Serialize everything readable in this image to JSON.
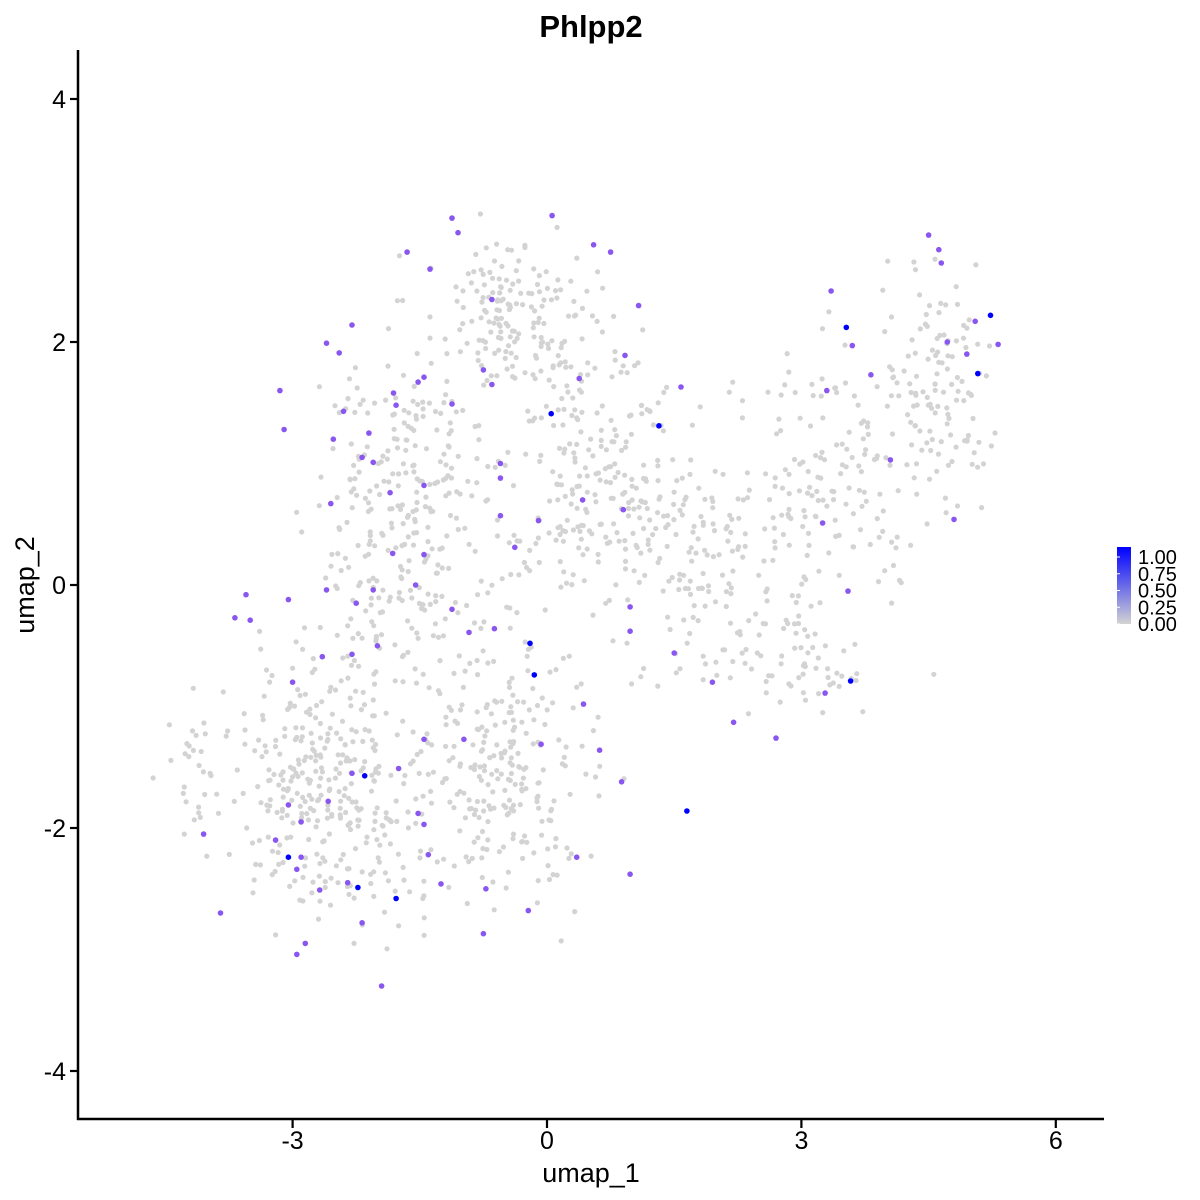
{
  "chart_data": {
    "type": "scatter",
    "title": "Phlpp2",
    "xlabel": "umap_1",
    "ylabel": "umap_2",
    "xlim": [
      -5.4,
      6.6
    ],
    "ylim": [
      -4.3,
      4.4
    ],
    "x_ticks": [
      -3,
      0,
      3,
      6
    ],
    "y_ticks": [
      -4,
      -2,
      0,
      2,
      4
    ],
    "x_tick_labels": [
      "-3",
      "0",
      "3",
      "6"
    ],
    "y_tick_labels": [
      "-4",
      "-2",
      "0",
      "2",
      "4"
    ],
    "grid": false,
    "colors": {
      "low": "#d3d3d3",
      "high": "#0000ff"
    },
    "legend": {
      "position": "right",
      "range": [
        0,
        1
      ],
      "labels": [
        "1.00",
        "0.75",
        "0.50",
        "0.25",
        "0.00"
      ],
      "values": [
        1.0,
        0.75,
        0.5,
        0.25,
        0.0
      ]
    },
    "background_points": {
      "count": 1650,
      "expression": 0.0,
      "note": "grey cells with zero expression spread across the embedding"
    },
    "points": [
      {
        "x": 5.23,
        "y": 2.22,
        "v": 1.0
      },
      {
        "x": 5.08,
        "y": 1.74,
        "v": 1.0
      },
      {
        "x": 3.53,
        "y": 2.12,
        "v": 1.0
      },
      {
        "x": 3.58,
        "y": -0.79,
        "v": 1.0
      },
      {
        "x": 1.32,
        "y": 1.31,
        "v": 1.0
      },
      {
        "x": 0.05,
        "y": 1.41,
        "v": 1.0
      },
      {
        "x": -0.2,
        "y": -0.48,
        "v": 1.0
      },
      {
        "x": -0.15,
        "y": -0.74,
        "v": 1.0
      },
      {
        "x": 1.65,
        "y": -1.86,
        "v": 1.0
      },
      {
        "x": -2.15,
        "y": -1.57,
        "v": 1.0
      },
      {
        "x": -3.05,
        "y": -2.24,
        "v": 1.0
      },
      {
        "x": -2.23,
        "y": -2.49,
        "v": 1.0
      },
      {
        "x": -1.78,
        "y": -2.58,
        "v": 1.0
      },
      {
        "x": 4.62,
        "y": 2.76,
        "v": 0.7
      },
      {
        "x": 4.5,
        "y": 2.88,
        "v": 0.7
      },
      {
        "x": 4.95,
        "y": 1.9,
        "v": 0.7
      },
      {
        "x": 5.32,
        "y": 1.98,
        "v": 0.7
      },
      {
        "x": 5.05,
        "y": 2.17,
        "v": 0.7
      },
      {
        "x": 4.72,
        "y": 2.0,
        "v": 0.7
      },
      {
        "x": 4.65,
        "y": 2.65,
        "v": 0.7
      },
      {
        "x": 4.8,
        "y": 0.54,
        "v": 0.7
      },
      {
        "x": 4.05,
        "y": 1.03,
        "v": 0.7
      },
      {
        "x": 3.35,
        "y": 2.42,
        "v": 0.7
      },
      {
        "x": 3.6,
        "y": 1.97,
        "v": 0.7
      },
      {
        "x": 3.82,
        "y": 1.73,
        "v": 0.7
      },
      {
        "x": 3.3,
        "y": 1.6,
        "v": 0.7
      },
      {
        "x": 3.25,
        "y": 0.51,
        "v": 0.7
      },
      {
        "x": 3.55,
        "y": -0.05,
        "v": 0.7
      },
      {
        "x": 3.28,
        "y": -0.89,
        "v": 0.7
      },
      {
        "x": 2.7,
        "y": -1.26,
        "v": 0.7
      },
      {
        "x": 2.2,
        "y": -1.13,
        "v": 0.7
      },
      {
        "x": 1.95,
        "y": -0.8,
        "v": 0.7
      },
      {
        "x": 1.5,
        "y": -0.56,
        "v": 0.7
      },
      {
        "x": 0.98,
        "y": -0.18,
        "v": 0.7
      },
      {
        "x": 0.98,
        "y": -0.38,
        "v": 0.7
      },
      {
        "x": 1.58,
        "y": 1.63,
        "v": 0.7
      },
      {
        "x": 0.75,
        "y": 2.74,
        "v": 0.7
      },
      {
        "x": 0.55,
        "y": 2.8,
        "v": 0.7
      },
      {
        "x": 1.08,
        "y": 2.3,
        "v": 0.7
      },
      {
        "x": 0.92,
        "y": 1.89,
        "v": 0.7
      },
      {
        "x": 0.38,
        "y": 1.7,
        "v": 0.7
      },
      {
        "x": 0.42,
        "y": 0.7,
        "v": 0.7
      },
      {
        "x": 0.9,
        "y": 0.62,
        "v": 0.7
      },
      {
        "x": 0.06,
        "y": 3.04,
        "v": 0.7
      },
      {
        "x": -1.12,
        "y": 3.02,
        "v": 0.7
      },
      {
        "x": -1.05,
        "y": 2.9,
        "v": 0.7
      },
      {
        "x": -1.65,
        "y": 2.74,
        "v": 0.7
      },
      {
        "x": -1.38,
        "y": 2.6,
        "v": 0.7
      },
      {
        "x": -0.65,
        "y": 2.35,
        "v": 0.7
      },
      {
        "x": -0.75,
        "y": 1.77,
        "v": 0.7
      },
      {
        "x": -0.65,
        "y": 1.65,
        "v": 0.7
      },
      {
        "x": -1.12,
        "y": 1.49,
        "v": 0.7
      },
      {
        "x": -1.45,
        "y": 1.71,
        "v": 0.7
      },
      {
        "x": -1.52,
        "y": 1.67,
        "v": 0.7
      },
      {
        "x": -1.81,
        "y": 1.58,
        "v": 0.7
      },
      {
        "x": -2.1,
        "y": 1.25,
        "v": 0.7
      },
      {
        "x": -1.78,
        "y": 1.48,
        "v": 0.7
      },
      {
        "x": -2.4,
        "y": 1.43,
        "v": 0.7
      },
      {
        "x": -2.52,
        "y": 1.2,
        "v": 0.7
      },
      {
        "x": -2.3,
        "y": 2.14,
        "v": 0.7
      },
      {
        "x": -2.6,
        "y": 1.99,
        "v": 0.7
      },
      {
        "x": -2.45,
        "y": 1.91,
        "v": 0.7
      },
      {
        "x": -3.15,
        "y": 1.6,
        "v": 0.7
      },
      {
        "x": -3.1,
        "y": 1.28,
        "v": 0.7
      },
      {
        "x": -2.05,
        "y": 1.01,
        "v": 0.7
      },
      {
        "x": -2.18,
        "y": 1.05,
        "v": 0.7
      },
      {
        "x": -1.85,
        "y": 0.76,
        "v": 0.7
      },
      {
        "x": -1.45,
        "y": 0.82,
        "v": 0.7
      },
      {
        "x": -0.55,
        "y": 1.0,
        "v": 0.7
      },
      {
        "x": -0.55,
        "y": 0.88,
        "v": 0.7
      },
      {
        "x": -0.55,
        "y": 0.57,
        "v": 0.7
      },
      {
        "x": -0.1,
        "y": 0.53,
        "v": 0.7
      },
      {
        "x": -0.38,
        "y": 0.31,
        "v": 0.7
      },
      {
        "x": -2.55,
        "y": 0.67,
        "v": 0.7
      },
      {
        "x": -1.82,
        "y": 0.26,
        "v": 0.7
      },
      {
        "x": -1.45,
        "y": 0.25,
        "v": 0.7
      },
      {
        "x": -1.55,
        "y": 0.0,
        "v": 0.7
      },
      {
        "x": -2.05,
        "y": -0.04,
        "v": 0.7
      },
      {
        "x": -2.25,
        "y": -0.15,
        "v": 0.7
      },
      {
        "x": -2.6,
        "y": -0.04,
        "v": 0.7
      },
      {
        "x": -3.05,
        "y": -0.12,
        "v": 0.7
      },
      {
        "x": -3.55,
        "y": -0.08,
        "v": 0.7
      },
      {
        "x": -3.5,
        "y": -0.29,
        "v": 0.7
      },
      {
        "x": -3.68,
        "y": -0.27,
        "v": 0.7
      },
      {
        "x": -2.0,
        "y": -0.5,
        "v": 0.7
      },
      {
        "x": -2.3,
        "y": -0.57,
        "v": 0.7
      },
      {
        "x": -2.65,
        "y": -0.59,
        "v": 0.7
      },
      {
        "x": -3.0,
        "y": -0.8,
        "v": 0.7
      },
      {
        "x": -1.12,
        "y": -0.2,
        "v": 0.7
      },
      {
        "x": -0.92,
        "y": -0.39,
        "v": 0.7
      },
      {
        "x": -0.62,
        "y": -0.36,
        "v": 0.7
      },
      {
        "x": -1.45,
        "y": -1.27,
        "v": 0.7
      },
      {
        "x": -0.98,
        "y": -1.27,
        "v": 0.7
      },
      {
        "x": -0.07,
        "y": -1.31,
        "v": 0.7
      },
      {
        "x": 0.43,
        "y": -0.98,
        "v": 0.7
      },
      {
        "x": 0.62,
        "y": -1.36,
        "v": 0.7
      },
      {
        "x": 0.88,
        "y": -1.62,
        "v": 0.7
      },
      {
        "x": -1.75,
        "y": -1.51,
        "v": 0.7
      },
      {
        "x": -2.3,
        "y": -1.55,
        "v": 0.7
      },
      {
        "x": -2.58,
        "y": -1.78,
        "v": 0.7
      },
      {
        "x": -2.9,
        "y": -1.95,
        "v": 0.7
      },
      {
        "x": -3.05,
        "y": -1.81,
        "v": 0.7
      },
      {
        "x": -3.2,
        "y": -2.1,
        "v": 0.7
      },
      {
        "x": -2.9,
        "y": -2.24,
        "v": 0.7
      },
      {
        "x": -2.95,
        "y": -2.34,
        "v": 0.7
      },
      {
        "x": -4.05,
        "y": -2.05,
        "v": 0.7
      },
      {
        "x": -2.35,
        "y": -2.45,
        "v": 0.7
      },
      {
        "x": -2.68,
        "y": -2.51,
        "v": 0.7
      },
      {
        "x": -2.85,
        "y": -2.95,
        "v": 0.7
      },
      {
        "x": -2.95,
        "y": -3.04,
        "v": 0.7
      },
      {
        "x": -3.85,
        "y": -2.7,
        "v": 0.7
      },
      {
        "x": -2.18,
        "y": -2.78,
        "v": 0.7
      },
      {
        "x": -1.95,
        "y": -3.3,
        "v": 0.7
      },
      {
        "x": -1.45,
        "y": -1.97,
        "v": 0.7
      },
      {
        "x": -1.4,
        "y": -2.22,
        "v": 0.7
      },
      {
        "x": -1.25,
        "y": -2.46,
        "v": 0.7
      },
      {
        "x": -0.72,
        "y": -2.5,
        "v": 0.7
      },
      {
        "x": -0.22,
        "y": -2.68,
        "v": 0.7
      },
      {
        "x": -0.75,
        "y": -2.87,
        "v": 0.7
      },
      {
        "x": 0.35,
        "y": -2.24,
        "v": 0.7
      },
      {
        "x": 0.98,
        "y": -2.38,
        "v": 0.7
      },
      {
        "x": -1.52,
        "y": -1.88,
        "v": 0.7
      }
    ]
  }
}
